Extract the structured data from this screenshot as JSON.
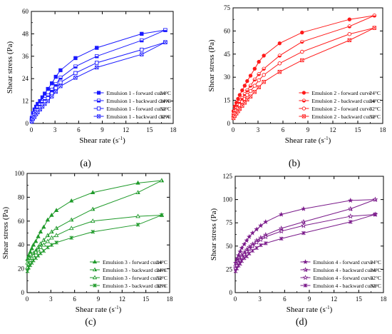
{
  "chart_data": [
    {
      "type": "line",
      "panel_label": "(a)",
      "color": "#1a1aff",
      "xlabel": "Shear rate (s-1)",
      "ylabel": "Shear stress (Pa)",
      "xlim": [
        0,
        18
      ],
      "ylim": [
        0,
        60
      ],
      "xticks": [
        "0",
        "3",
        "6",
        "9",
        "12",
        "15",
        "18"
      ],
      "yticks": [
        "0",
        "12",
        "24",
        "36",
        "48",
        "60"
      ],
      "legend_position": "bottom-right",
      "series": [
        {
          "name": "Emulsion 1 - forward curve",
          "temp": "24°C",
          "marker": "filled-square",
          "x": [
            0.05,
            0.2,
            0.4,
            0.6,
            0.8,
            1.1,
            1.4,
            1.7,
            2.1,
            2.6,
            3.1,
            3.7,
            5.6,
            8.3,
            14.0,
            17.0
          ],
          "y": [
            3.0,
            5.5,
            7.5,
            9.0,
            10.5,
            12.0,
            14.0,
            16.0,
            18.5,
            21.5,
            25.0,
            28.5,
            35.0,
            40.5,
            48.0,
            50.0
          ]
        },
        {
          "name": "Emulsion 1 - backward curve",
          "temp": "24°C",
          "marker": "half-square",
          "x": [
            0.05,
            0.2,
            0.4,
            0.6,
            0.8,
            1.1,
            1.4,
            1.7,
            2.1,
            2.6,
            3.1,
            3.7,
            5.6,
            8.3,
            14.0,
            17.0
          ],
          "y": [
            2.0,
            4.0,
            5.5,
            7.0,
            8.5,
            10.0,
            11.5,
            13.0,
            15.0,
            18.0,
            21.0,
            24.5,
            30.5,
            36.0,
            44.5,
            50.0
          ]
        },
        {
          "name": "Emulsion 1 - forward curve",
          "temp": "32°C",
          "marker": "open-square",
          "x": [
            0.05,
            0.2,
            0.4,
            0.6,
            0.8,
            1.1,
            1.4,
            1.7,
            2.1,
            2.6,
            3.1,
            3.7,
            5.6,
            8.3,
            14.0,
            17.0
          ],
          "y": [
            1.5,
            3.0,
            4.5,
            6.0,
            7.0,
            8.5,
            10.0,
            11.5,
            13.5,
            16.0,
            19.0,
            22.0,
            27.0,
            32.5,
            39.5,
            43.5
          ]
        },
        {
          "name": "Emulsion 1 - backward curve",
          "temp": "32°C",
          "marker": "x-square",
          "x": [
            0.05,
            0.2,
            0.4,
            0.6,
            0.8,
            1.1,
            1.4,
            1.7,
            2.1,
            2.6,
            3.1,
            3.7,
            5.6,
            8.3,
            14.0,
            17.0
          ],
          "y": [
            1.0,
            2.5,
            3.5,
            5.0,
            6.0,
            7.5,
            9.0,
            10.5,
            12.0,
            14.5,
            17.0,
            20.0,
            24.5,
            30.0,
            37.0,
            43.5
          ]
        }
      ]
    },
    {
      "type": "line",
      "panel_label": "(b)",
      "color": "#ff1a1a",
      "xlabel": "Shear rate (s-1)",
      "ylabel": "Shear stress (Pa)",
      "xlim": [
        0,
        18
      ],
      "ylim": [
        0,
        75
      ],
      "xticks": [
        "0",
        "3",
        "6",
        "9",
        "12",
        "15",
        "18"
      ],
      "yticks": [
        "0",
        "15",
        "30",
        "45",
        "60",
        "75"
      ],
      "legend_position": "bottom-right",
      "series": [
        {
          "name": "Emulsion 2 - forward curve",
          "temp": "24°C",
          "marker": "filled-circle",
          "x": [
            0.05,
            0.2,
            0.4,
            0.6,
            0.8,
            1.1,
            1.4,
            1.7,
            2.1,
            2.6,
            3.1,
            3.7,
            5.6,
            8.3,
            14.0,
            17.0
          ],
          "y": [
            8.0,
            11.0,
            13.5,
            16.0,
            18.5,
            21.5,
            24.5,
            27.5,
            31.0,
            35.5,
            40.0,
            44.0,
            52.0,
            59.0,
            67.5,
            70.0
          ]
        },
        {
          "name": "Emulsion 2 - backward curve",
          "temp": "24°C",
          "marker": "half-circle",
          "x": [
            0.05,
            0.2,
            0.4,
            0.6,
            0.8,
            1.1,
            1.4,
            1.7,
            2.1,
            2.6,
            3.1,
            3.7,
            5.6,
            8.3,
            14.0,
            17.0
          ],
          "y": [
            6.0,
            8.0,
            10.0,
            12.0,
            14.0,
            16.5,
            19.0,
            21.5,
            24.5,
            28.5,
            32.0,
            35.5,
            44.0,
            53.0,
            63.0,
            70.0
          ]
        },
        {
          "name": "Emulsion 2 - forward curve",
          "temp": "32°C",
          "marker": "open-circle",
          "x": [
            0.05,
            0.2,
            0.4,
            0.6,
            0.8,
            1.1,
            1.4,
            1.7,
            2.1,
            2.6,
            3.1,
            3.7,
            5.6,
            8.3,
            14.0,
            17.0
          ],
          "y": [
            4.5,
            6.5,
            8.5,
            10.0,
            12.0,
            14.0,
            16.0,
            18.5,
            21.0,
            24.5,
            28.0,
            31.5,
            39.0,
            46.5,
            58.0,
            62.0
          ]
        },
        {
          "name": "Emulsion 2 - backward curve",
          "temp": "32°C",
          "marker": "x-square",
          "x": [
            0.05,
            0.2,
            0.4,
            0.6,
            0.8,
            1.1,
            1.4,
            1.7,
            2.1,
            2.6,
            3.1,
            3.7,
            5.6,
            8.3,
            14.0,
            17.0
          ],
          "y": [
            3.5,
            5.0,
            6.5,
            8.0,
            9.5,
            11.5,
            13.5,
            15.5,
            17.5,
            20.5,
            23.5,
            27.0,
            33.5,
            41.0,
            54.0,
            62.0
          ]
        }
      ]
    },
    {
      "type": "line",
      "panel_label": "(c)",
      "color": "#1f9a2a",
      "xlabel": "Shear rate (s-1)",
      "ylabel": "Shear stress (Pa)",
      "xlim": [
        0,
        18
      ],
      "ylim": [
        0,
        100
      ],
      "xticks": [
        "0",
        "3",
        "6",
        "9",
        "12",
        "15",
        "18"
      ],
      "yticks": [
        "0",
        "20",
        "40",
        "60",
        "80",
        "100"
      ],
      "legend_position": "bottom-right",
      "series": [
        {
          "name": "Emulsion 3 - forward curve",
          "temp": "24°C",
          "marker": "filled-triangle",
          "x": [
            0.05,
            0.2,
            0.4,
            0.6,
            0.8,
            1.1,
            1.4,
            1.7,
            2.1,
            2.6,
            3.1,
            3.7,
            5.6,
            8.3,
            14.0,
            17.0
          ],
          "y": [
            28,
            31,
            34,
            37,
            40,
            43,
            47,
            51,
            55,
            61,
            65,
            69,
            77,
            84,
            92,
            94
          ]
        },
        {
          "name": "Emulsion 3 - backward curve",
          "temp": "24°C",
          "marker": "half-triangle",
          "x": [
            0.05,
            0.2,
            0.4,
            0.6,
            0.8,
            1.1,
            1.4,
            1.7,
            2.1,
            2.6,
            3.1,
            3.7,
            5.6,
            8.3,
            14.0,
            17.0
          ],
          "y": [
            25,
            27,
            29,
            31,
            33,
            35,
            38,
            41,
            44,
            48,
            51,
            54,
            61,
            70,
            84,
            94
          ]
        },
        {
          "name": "Emulsion 3 - forward curve",
          "temp": "32°C",
          "marker": "open-triangle",
          "x": [
            0.05,
            0.2,
            0.4,
            0.6,
            0.8,
            1.1,
            1.4,
            1.7,
            2.1,
            2.6,
            3.1,
            3.7,
            5.6,
            8.3,
            14.0,
            17.0
          ],
          "y": [
            21,
            24,
            27,
            29,
            31,
            34,
            36,
            38,
            40,
            43,
            46,
            48,
            54,
            60,
            64,
            65
          ]
        },
        {
          "name": "Emulsion 3 - backward curve",
          "temp": "32°C",
          "marker": "x-star",
          "x": [
            0.05,
            0.2,
            0.4,
            0.6,
            0.8,
            1.1,
            1.4,
            1.7,
            2.1,
            2.6,
            3.1,
            3.7,
            5.6,
            8.3,
            14.0,
            17.0
          ],
          "y": [
            18,
            21,
            23,
            25,
            27,
            29,
            31,
            33,
            35,
            38,
            40,
            42,
            46,
            51,
            57,
            65
          ]
        }
      ]
    },
    {
      "type": "line",
      "panel_label": "(d)",
      "color": "#7a1a8a",
      "xlabel": "Shear rate (s-1)",
      "ylabel": "Shear stress (Pa)",
      "xlim": [
        0,
        18
      ],
      "ylim": [
        0,
        125
      ],
      "xticks": [
        "0",
        "3",
        "6",
        "9",
        "12",
        "15",
        "18"
      ],
      "yticks": [
        "0",
        "25",
        "50",
        "75",
        "100",
        "125"
      ],
      "legend_position": "bottom-right",
      "series": [
        {
          "name": "Emulsion 4 - forward curve",
          "temp": "24°C",
          "marker": "filled-star",
          "x": [
            0.05,
            0.2,
            0.4,
            0.6,
            0.8,
            1.1,
            1.4,
            1.7,
            2.1,
            2.6,
            3.1,
            3.7,
            5.6,
            8.3,
            14.0,
            17.0
          ],
          "y": [
            32,
            36,
            40,
            44,
            48,
            52,
            56,
            60,
            64,
            68,
            72,
            76,
            84,
            90,
            99,
            100
          ]
        },
        {
          "name": "Emulsion 4 - backward curve",
          "temp": "24°C",
          "marker": "half-star",
          "x": [
            0.05,
            0.2,
            0.4,
            0.6,
            0.8,
            1.1,
            1.4,
            1.7,
            2.1,
            2.6,
            3.1,
            3.7,
            5.6,
            8.3,
            14.0,
            17.0
          ],
          "y": [
            28,
            31,
            34,
            37,
            40,
            43,
            46,
            49,
            52,
            56,
            59,
            62,
            69,
            76,
            90,
            100
          ]
        },
        {
          "name": "Emulsion 4 - forward curve",
          "temp": "32°C",
          "marker": "open-star",
          "x": [
            0.05,
            0.2,
            0.4,
            0.6,
            0.8,
            1.1,
            1.4,
            1.7,
            2.1,
            2.6,
            3.1,
            3.7,
            5.6,
            8.3,
            14.0,
            17.0
          ],
          "y": [
            26,
            29,
            32,
            35,
            38,
            41,
            44,
            47,
            50,
            54,
            57,
            60,
            66,
            72,
            82,
            84
          ]
        },
        {
          "name": "Emulsion 4 - backward curve",
          "temp": "32°C",
          "marker": "x-star",
          "x": [
            0.05,
            0.2,
            0.4,
            0.6,
            0.8,
            1.1,
            1.4,
            1.7,
            2.1,
            2.6,
            3.1,
            3.7,
            5.6,
            8.3,
            14.0,
            17.0
          ],
          "y": [
            23,
            26,
            29,
            31,
            34,
            37,
            39,
            42,
            45,
            48,
            51,
            53,
            58,
            64,
            76,
            84
          ]
        }
      ]
    }
  ]
}
